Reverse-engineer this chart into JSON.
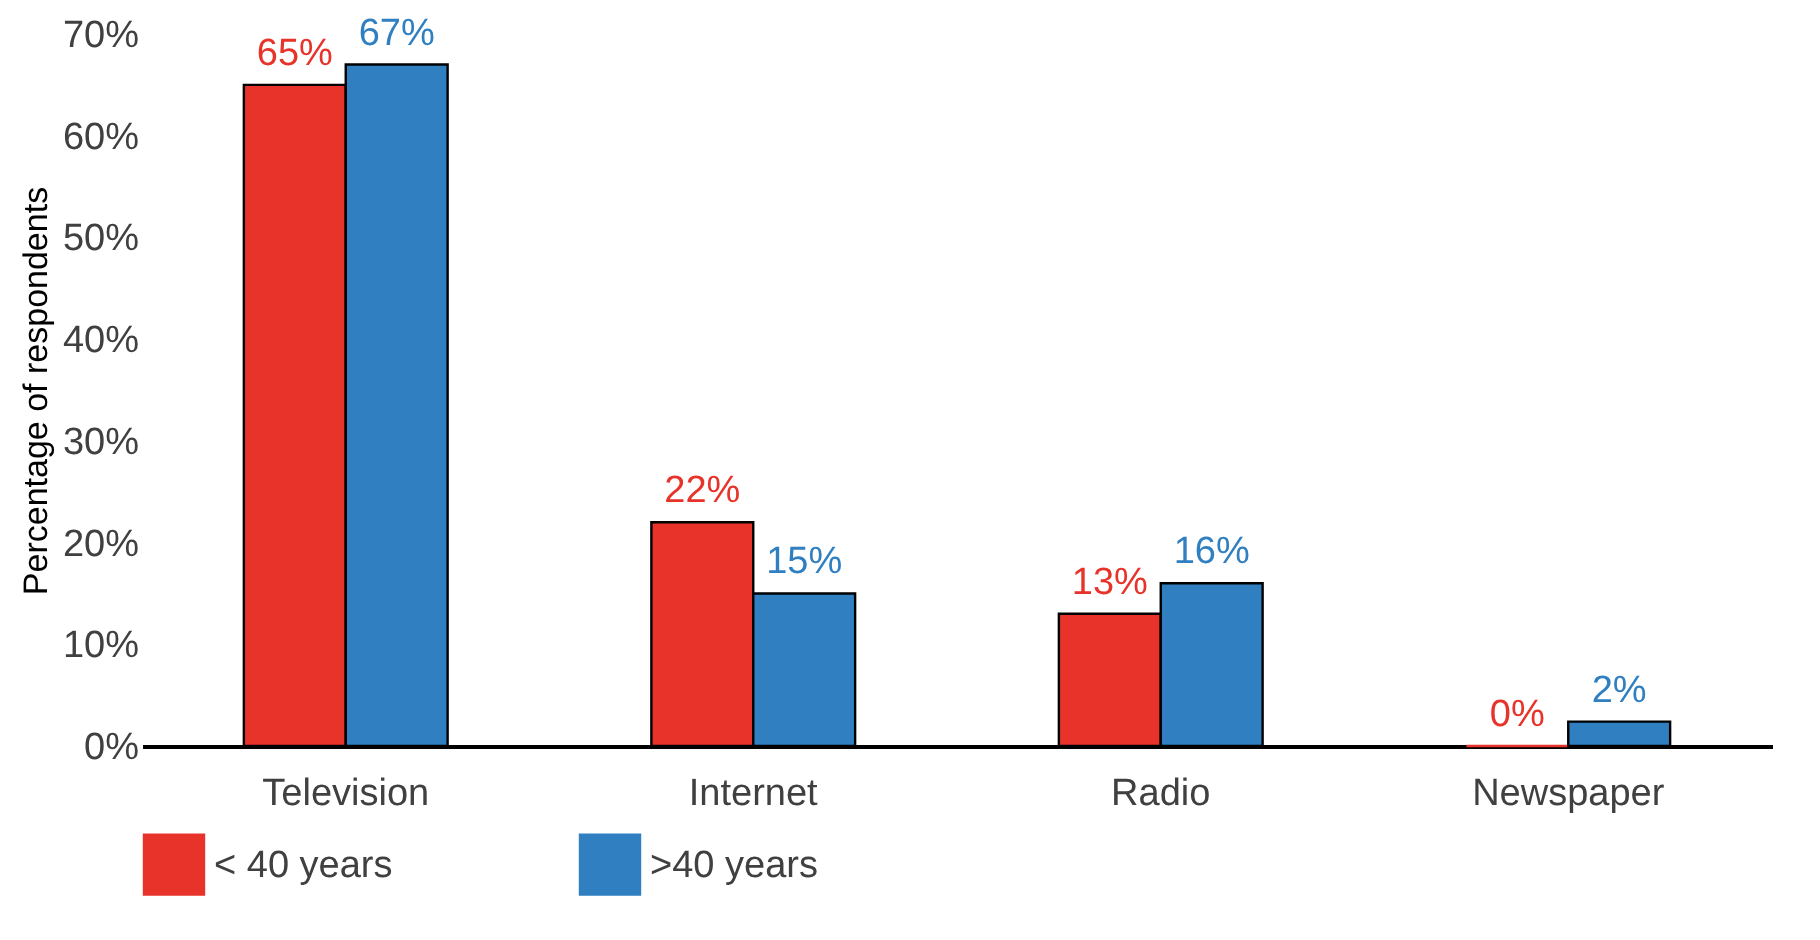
{
  "chart_data": {
    "type": "bar",
    "ylabel": "Percentage of respondents",
    "categories": [
      "Television",
      "Internet",
      "Radio",
      "Newspaper"
    ],
    "series": [
      {
        "name": "< 40 years",
        "color": "#e8332a",
        "values": [
          65,
          22,
          13,
          0
        ],
        "value_labels": [
          "65%",
          "22%",
          "13%",
          "0%"
        ]
      },
      {
        "name": ">40 years",
        "color": "#2f7fc1",
        "values": [
          67,
          15,
          16,
          2.4
        ],
        "value_labels": [
          "67%",
          "15%",
          "16%",
          "2%"
        ]
      }
    ],
    "ylim": [
      0,
      70
    ],
    "yticks": [
      {
        "value": 0,
        "label": "0%"
      },
      {
        "value": 10,
        "label": "10%"
      },
      {
        "value": 20,
        "label": "20%"
      },
      {
        "value": 30,
        "label": "30%"
      },
      {
        "value": 40,
        "label": "40%"
      },
      {
        "value": 50,
        "label": "50%"
      },
      {
        "value": 60,
        "label": "60%"
      },
      {
        "value": 70,
        "label": "70%"
      }
    ],
    "grid": false,
    "legend": "bottom"
  }
}
